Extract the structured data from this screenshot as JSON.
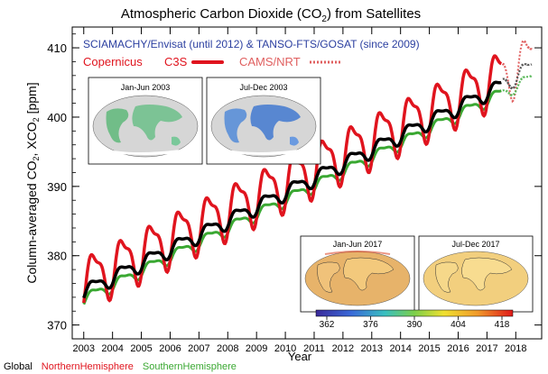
{
  "chart_data": {
    "type": "line",
    "title_main": "Atmospheric Carbon Dioxide (CO",
    "title_sub": "2",
    "title_tail": ") from Satellites",
    "ylabel_a": "Column-averaged CO",
    "ylabel_sub1": "2",
    "ylabel_b": ", XCO",
    "ylabel_sub2": "2",
    "ylabel_c": " [ppm]",
    "xlabel": "Year",
    "xlim": [
      2002.6,
      2018.9
    ],
    "ylim": [
      368,
      413
    ],
    "yticks": [
      370,
      380,
      390,
      400,
      410
    ],
    "xticks": [
      2003,
      2004,
      2005,
      2006,
      2007,
      2008,
      2009,
      2010,
      2011,
      2012,
      2013,
      2014,
      2015,
      2016,
      2017,
      2018
    ],
    "info_line": "SCIAMACHY/Envisat (until 2012) & TANSO-FTS/GOSAT (since 2009)",
    "copernicus_label": "Copernicus",
    "c3s_label": "C3S",
    "cams_label": "CAMS/NRT",
    "legend_bottom": [
      {
        "name": "Global",
        "color": "#000000"
      },
      {
        "name": "NorthernHemisphere",
        "color": "#e0141e"
      },
      {
        "name": "SouthernHemisphere",
        "color": "#3aa832"
      }
    ],
    "maps": [
      {
        "title": "Jan-Jun 2003"
      },
      {
        "title": "Jul-Dec 2003"
      },
      {
        "title": "Jan-Jun 2017"
      },
      {
        "title": "Jul-Dec 2017"
      }
    ],
    "colorbar_ticks": [
      "362",
      "376",
      "390",
      "404",
      "418"
    ],
    "model": {
      "start_year": 2003.0,
      "end_year": 2017.5,
      "global": {
        "base": 374.8,
        "trend_per_year": 2.05,
        "amplitude": 1.0
      },
      "northern": {
        "base": 376.3,
        "trend_per_year": 2.05,
        "amplitude": 3.5
      },
      "southern": {
        "base": 373.7,
        "trend_per_year": 2.05,
        "amplitude": 0.8
      },
      "nrt": {
        "start_year": 2017.55,
        "end_year": 2018.55,
        "base": 405.0,
        "amplitude": 3.5,
        "trend_per_year": 2.1
      }
    },
    "colors": {
      "global": "#000000",
      "northern": "#e0141e",
      "southern": "#3aa832",
      "info_text": "#2b3fa0",
      "copernicus_text": "#e0141e",
      "cams_text": "#e06060"
    }
  }
}
